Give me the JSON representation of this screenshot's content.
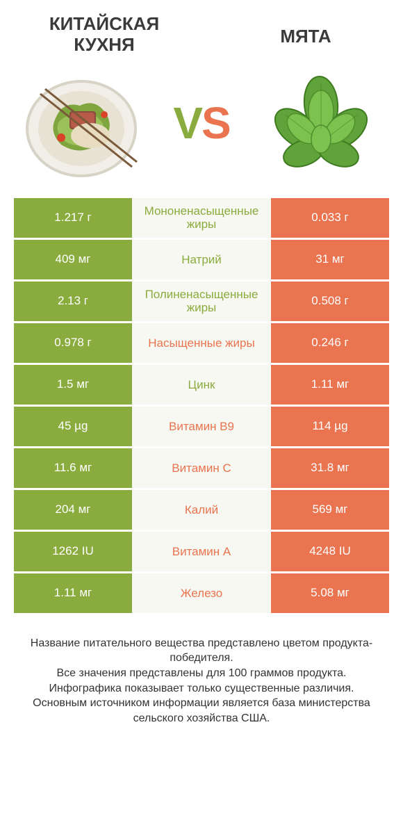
{
  "colors": {
    "green": "#8aab3d",
    "orange": "#e9744f",
    "midBg": "#f7f8f2",
    "text": "#333333"
  },
  "header": {
    "left": "КИТАЙСКАЯ КУХНЯ",
    "right": "МЯТА",
    "vs": "VS"
  },
  "rows": [
    {
      "left": "1.217 г",
      "label": "Мононенасыщенные жиры",
      "right": "0.033 г",
      "winner": "left"
    },
    {
      "left": "409 мг",
      "label": "Натрий",
      "right": "31 мг",
      "winner": "left"
    },
    {
      "left": "2.13 г",
      "label": "Полиненасыщенные жиры",
      "right": "0.508 г",
      "winner": "left"
    },
    {
      "left": "0.978 г",
      "label": "Насыщенные жиры",
      "right": "0.246 г",
      "winner": "right"
    },
    {
      "left": "1.5 мг",
      "label": "Цинк",
      "right": "1.11 мг",
      "winner": "left"
    },
    {
      "left": "45 µg",
      "label": "Витамин B9",
      "right": "114 µg",
      "winner": "right"
    },
    {
      "left": "11.6 мг",
      "label": "Витамин C",
      "right": "31.8 мг",
      "winner": "right"
    },
    {
      "left": "204 мг",
      "label": "Калий",
      "right": "569 мг",
      "winner": "right"
    },
    {
      "left": "1262 IU",
      "label": "Витамин A",
      "right": "4248 IU",
      "winner": "right"
    },
    {
      "left": "1.11 мг",
      "label": "Железо",
      "right": "5.08 мг",
      "winner": "right"
    }
  ],
  "footer": "Название питательного вещества представлено цветом продукта-победителя.\nВсе значения представлены для 100 граммов продукта.\nИнфографика показывает только существенные различия.\nОсновным источником информации является база министерства сельского хозяйства США."
}
